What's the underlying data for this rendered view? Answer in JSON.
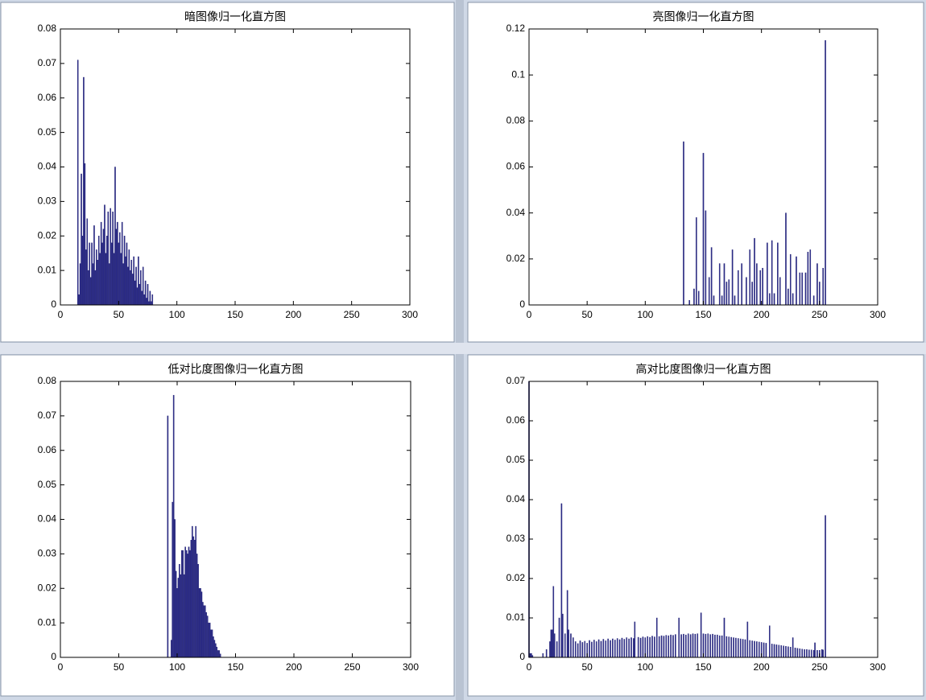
{
  "chart_data": [
    {
      "type": "bar",
      "title": "暗图像归一化直方图",
      "color": "#2e2e8c",
      "x": [
        15,
        16,
        17,
        18,
        19,
        20,
        21,
        22,
        23,
        24,
        25,
        26,
        27,
        28,
        29,
        30,
        31,
        32,
        33,
        34,
        35,
        36,
        37,
        38,
        39,
        40,
        41,
        42,
        43,
        44,
        45,
        46,
        47,
        48,
        49,
        50,
        51,
        52,
        53,
        54,
        55,
        56,
        57,
        58,
        59,
        60,
        61,
        62,
        63,
        64,
        65,
        66,
        67,
        68,
        69,
        70,
        71,
        72,
        73,
        74,
        75,
        76,
        77,
        78,
        79
      ],
      "values": [
        0.071,
        0.003,
        0.012,
        0.038,
        0.02,
        0.066,
        0.041,
        0.016,
        0.025,
        0.01,
        0.018,
        0.008,
        0.018,
        0.012,
        0.023,
        0.01,
        0.016,
        0.013,
        0.02,
        0.015,
        0.024,
        0.018,
        0.022,
        0.029,
        0.015,
        0.02,
        0.027,
        0.012,
        0.028,
        0.018,
        0.027,
        0.015,
        0.04,
        0.022,
        0.024,
        0.018,
        0.021,
        0.015,
        0.024,
        0.012,
        0.02,
        0.014,
        0.018,
        0.011,
        0.016,
        0.01,
        0.013,
        0.009,
        0.014,
        0.007,
        0.011,
        0.005,
        0.014,
        0.006,
        0.01,
        0.004,
        0.011,
        0.003,
        0.007,
        0.002,
        0.006,
        0.001,
        0.004,
        0.001,
        0.003
      ],
      "xlim": [
        0,
        300
      ],
      "xticks": [
        0,
        50,
        100,
        150,
        200,
        250,
        300
      ],
      "ylim": [
        0,
        0.08
      ],
      "yticks": [
        0,
        0.01,
        0.02,
        0.03,
        0.04,
        0.05,
        0.06,
        0.07,
        0.08
      ]
    },
    {
      "type": "bar",
      "title": "亮图像归一化直方图",
      "color": "#2e2e8c",
      "x": [
        133,
        138,
        142,
        144,
        146,
        150,
        152,
        155,
        157,
        159,
        164,
        166,
        168,
        170,
        172,
        175,
        177,
        180,
        183,
        187,
        190,
        192,
        194,
        196,
        199,
        201,
        205,
        207,
        209,
        211,
        214,
        216,
        221,
        223,
        225,
        227,
        230,
        233,
        235,
        238,
        240,
        242,
        245,
        248,
        250,
        253,
        255
      ],
      "values": [
        0.071,
        0.002,
        0.007,
        0.038,
        0.006,
        0.066,
        0.041,
        0.012,
        0.025,
        0.004,
        0.018,
        0.004,
        0.018,
        0.01,
        0.011,
        0.024,
        0.004,
        0.015,
        0.018,
        0.012,
        0.024,
        0.01,
        0.029,
        0.018,
        0.015,
        0.016,
        0.027,
        0.005,
        0.028,
        0.005,
        0.027,
        0.012,
        0.04,
        0.007,
        0.022,
        0.005,
        0.021,
        0.014,
        0.014,
        0.014,
        0.023,
        0.024,
        0.004,
        0.018,
        0.01,
        0.016,
        0.115
      ],
      "xlim": [
        0,
        300
      ],
      "xticks": [
        0,
        50,
        100,
        150,
        200,
        250,
        300
      ],
      "ylim": [
        0,
        0.12
      ],
      "yticks": [
        0,
        0.02,
        0.04,
        0.06,
        0.08,
        0.1,
        0.12
      ]
    },
    {
      "type": "bar",
      "title": "低对比度图像归一化直方图",
      "color": "#2e2e8c",
      "x": [
        92,
        95,
        96,
        97,
        98,
        99,
        100,
        101,
        102,
        103,
        104,
        105,
        106,
        107,
        108,
        109,
        110,
        111,
        112,
        113,
        114,
        115,
        116,
        117,
        118,
        119,
        120,
        121,
        122,
        123,
        124,
        125,
        126,
        127,
        128,
        129,
        130,
        131,
        132,
        133,
        134,
        135,
        136,
        137
      ],
      "values": [
        0.07,
        0.005,
        0.045,
        0.076,
        0.04,
        0.025,
        0.02,
        0.023,
        0.027,
        0.024,
        0.031,
        0.031,
        0.024,
        0.032,
        0.031,
        0.03,
        0.032,
        0.031,
        0.034,
        0.038,
        0.035,
        0.034,
        0.038,
        0.03,
        0.027,
        0.02,
        0.02,
        0.019,
        0.016,
        0.015,
        0.015,
        0.013,
        0.012,
        0.01,
        0.01,
        0.008,
        0.008,
        0.006,
        0.005,
        0.004,
        0.003,
        0.002,
        0.002,
        0.001
      ],
      "xlim": [
        0,
        300
      ],
      "xticks": [
        0,
        50,
        100,
        150,
        200,
        250,
        300
      ],
      "ylim": [
        0,
        0.08
      ],
      "yticks": [
        0,
        0.01,
        0.02,
        0.03,
        0.04,
        0.05,
        0.06,
        0.07,
        0.08
      ]
    },
    {
      "type": "bar",
      "title": "高对比度图像归一化直方图",
      "color": "#2e2e8c",
      "x": [
        0,
        1,
        2,
        3,
        12,
        15,
        18,
        19,
        20,
        21,
        22,
        24,
        26,
        28,
        29,
        31,
        33,
        34,
        36,
        38,
        40,
        42,
        44,
        46,
        48,
        50,
        52,
        54,
        56,
        58,
        60,
        62,
        64,
        66,
        68,
        70,
        72,
        74,
        76,
        78,
        80,
        82,
        84,
        86,
        88,
        90,
        91,
        94,
        96,
        98,
        100,
        102,
        104,
        106,
        108,
        110,
        112,
        114,
        116,
        118,
        120,
        122,
        124,
        126,
        129,
        131,
        133,
        135,
        137,
        139,
        141,
        143,
        145,
        148,
        150,
        152,
        154,
        156,
        158,
        160,
        162,
        164,
        166,
        168,
        170,
        172,
        174,
        176,
        178,
        180,
        182,
        184,
        186,
        188,
        190,
        192,
        194,
        196,
        198,
        200,
        202,
        204,
        207,
        209,
        211,
        213,
        215,
        217,
        219,
        221,
        223,
        225,
        227,
        229,
        231,
        233,
        235,
        237,
        239,
        241,
        243,
        245,
        246,
        248,
        250,
        252,
        253,
        255
      ],
      "values": [
        0.07,
        0.001,
        0.001,
        0.0005,
        0.001,
        0.002,
        0.004,
        0.007,
        0.007,
        0.018,
        0.006,
        0.004,
        0.01,
        0.039,
        0.011,
        0.006,
        0.017,
        0.007,
        0.006,
        0.005,
        0.004,
        0.0035,
        0.0042,
        0.0038,
        0.0041,
        0.0036,
        0.0043,
        0.0039,
        0.0044,
        0.004,
        0.0045,
        0.0041,
        0.0046,
        0.0042,
        0.0047,
        0.0043,
        0.0047,
        0.0044,
        0.0048,
        0.0045,
        0.0049,
        0.0046,
        0.005,
        0.0047,
        0.005,
        0.0048,
        0.009,
        0.0051,
        0.0049,
        0.0052,
        0.005,
        0.0053,
        0.0051,
        0.0054,
        0.0052,
        0.01,
        0.0053,
        0.0055,
        0.0054,
        0.0056,
        0.0055,
        0.0057,
        0.0056,
        0.0058,
        0.01,
        0.0058,
        0.0059,
        0.0057,
        0.006,
        0.0058,
        0.006,
        0.0059,
        0.006,
        0.0113,
        0.006,
        0.0059,
        0.006,
        0.0058,
        0.0059,
        0.0057,
        0.0057,
        0.0055,
        0.0055,
        0.01,
        0.0053,
        0.0052,
        0.0051,
        0.005,
        0.0049,
        0.0048,
        0.0047,
        0.0046,
        0.0045,
        0.009,
        0.0043,
        0.0042,
        0.0041,
        0.004,
        0.0039,
        0.0038,
        0.0037,
        0.0036,
        0.008,
        0.0034,
        0.0033,
        0.0032,
        0.0031,
        0.003,
        0.0029,
        0.0028,
        0.0027,
        0.0026,
        0.005,
        0.0024,
        0.0023,
        0.0022,
        0.0021,
        0.002,
        0.002,
        0.0019,
        0.0019,
        0.0018,
        0.0037,
        0.0018,
        0.0018,
        0.002,
        0.0019,
        0.036
      ],
      "xlim": [
        0,
        300
      ],
      "xticks": [
        0,
        50,
        100,
        150,
        200,
        250,
        300
      ],
      "ylim": [
        0,
        0.07
      ],
      "yticks": [
        0,
        0.01,
        0.02,
        0.03,
        0.04,
        0.05,
        0.06,
        0.07
      ]
    }
  ]
}
